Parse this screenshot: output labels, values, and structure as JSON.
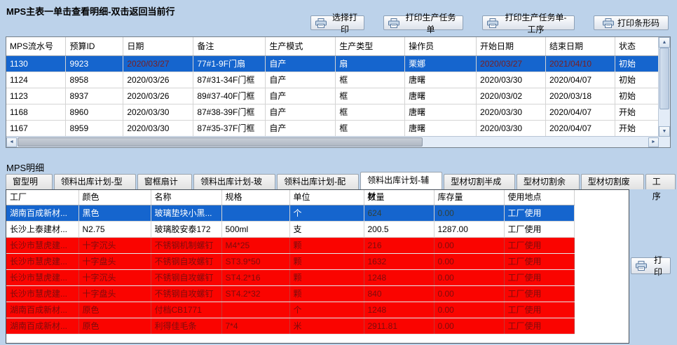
{
  "colors": {
    "page_background": "#BCD2EA",
    "selection_blue": "#1565CE",
    "alert_row_red": "#FA0400",
    "alert_text_dark_red": "#7E0C0C",
    "selected_date_dark_red": "#7B1F1F"
  },
  "scrollbar_icons": {
    "up": "▲",
    "down": "▼",
    "left": "◄",
    "right": "►"
  },
  "main_section": {
    "title": "MPS主表一单击查看明细-双击返回当前行",
    "buttons": [
      {
        "icon": "printer-icon",
        "label": "选择打印"
      },
      {
        "icon": "printer-icon",
        "label": "打印生产任务单"
      },
      {
        "icon": "printer-icon",
        "label": "打印生产任务单-工序"
      },
      {
        "icon": "printer-icon",
        "label": "打印条形码"
      }
    ],
    "table": {
      "headers": [
        "MPS流水号",
        "预算ID",
        "日期",
        "备注",
        "生产模式",
        "生产类型",
        "操作员",
        "开始日期",
        "结束日期",
        "状态"
      ],
      "rows": [
        {
          "state": "selected",
          "cells": [
            "1130",
            "9923",
            "2020/03/27",
            "77#1-9F门扇",
            "自产",
            "扇",
            "栗娜",
            "2020/03/27",
            "2021/04/10",
            "初始"
          ]
        },
        {
          "state": "normal",
          "cells": [
            "1124",
            "8958",
            "2020/03/26",
            "87#31-34F门框",
            "自产",
            "框",
            "唐曙",
            "2020/03/30",
            "2020/04/07",
            "初始"
          ]
        },
        {
          "state": "normal",
          "cells": [
            "1123",
            "8937",
            "2020/03/26",
            "89#37-40F门框",
            "自产",
            "框",
            "唐曙",
            "2020/03/02",
            "2020/03/18",
            "初始"
          ]
        },
        {
          "state": "normal",
          "cells": [
            "1168",
            "8960",
            "2020/03/30",
            "87#38-39F门框",
            "自产",
            "框",
            "唐曙",
            "2020/03/30",
            "2020/04/07",
            "开始"
          ]
        },
        {
          "state": "normal",
          "cells": [
            "1167",
            "8959",
            "2020/03/30",
            "87#35-37F门框",
            "自产",
            "框",
            "唐曙",
            "2020/03/30",
            "2020/04/07",
            "开始"
          ]
        },
        {
          "state": "normal",
          "cells": [
            "",
            "",
            "",
            "",
            "",
            "",
            "",
            "",
            "",
            ""
          ]
        }
      ]
    }
  },
  "detail_section": {
    "title": "MPS明细",
    "tabs": [
      "窗型明细",
      "领料出库计划-型材",
      "窗框扇计划",
      "领料出库计划-玻璃",
      "领料出库计划-配件",
      "领料出库计划-辅材",
      "型材切割半成品",
      "型材切割余料",
      "型材切割废料",
      "工序"
    ],
    "active_tab": "领料出库计划-辅材",
    "print_button": "打印",
    "table": {
      "headers": [
        "工厂",
        "颜色",
        "名称",
        "规格",
        "单位",
        "数量",
        "库存量",
        "使用地点"
      ],
      "rows": [
        {
          "state": "selected",
          "cells": [
            "湖南百成新材...",
            "黑色",
            "玻璃垫块小黑...",
            "",
            "个",
            "624",
            "0.00",
            "工厂使用"
          ]
        },
        {
          "state": "normal",
          "cells": [
            "长沙上泰建材...",
            "N2.75",
            "玻璃胶安泰172",
            "500ml",
            "支",
            "200.5",
            "1287.00",
            "工厂使用"
          ]
        },
        {
          "state": "alert",
          "cells": [
            "长沙市慧虎建...",
            "十字沉头",
            "不锈钢机制螺钉",
            "M4*25",
            "颗",
            "216",
            "0.00",
            "工厂使用"
          ]
        },
        {
          "state": "alert",
          "cells": [
            "长沙市慧虎建...",
            "十字盘头",
            "不锈钢自攻螺钉",
            "ST3.9*50",
            "颗",
            "1632",
            "0.00",
            "工厂使用"
          ]
        },
        {
          "state": "alert",
          "cells": [
            "长沙市慧虎建...",
            "十字沉头",
            "不锈钢自攻螺钉",
            "ST4.2*16",
            "颗",
            "1248",
            "0.00",
            "工厂使用"
          ]
        },
        {
          "state": "alert",
          "cells": [
            "长沙市慧虎建...",
            "十字盘头",
            "不锈钢自攻螺钉",
            "ST4.2*32",
            "颗",
            "840",
            "0.00",
            "工厂使用"
          ]
        },
        {
          "state": "alert",
          "cells": [
            "湖南百成新材...",
            "原色",
            "付档CB1771",
            "",
            "个",
            "1248",
            "0.00",
            "工厂使用"
          ]
        },
        {
          "state": "alert",
          "cells": [
            "湖南百成新材...",
            "原色",
            "利得佳毛条",
            "7*4",
            "米",
            "2911.81",
            "0.00",
            "工厂使用"
          ]
        }
      ]
    }
  }
}
